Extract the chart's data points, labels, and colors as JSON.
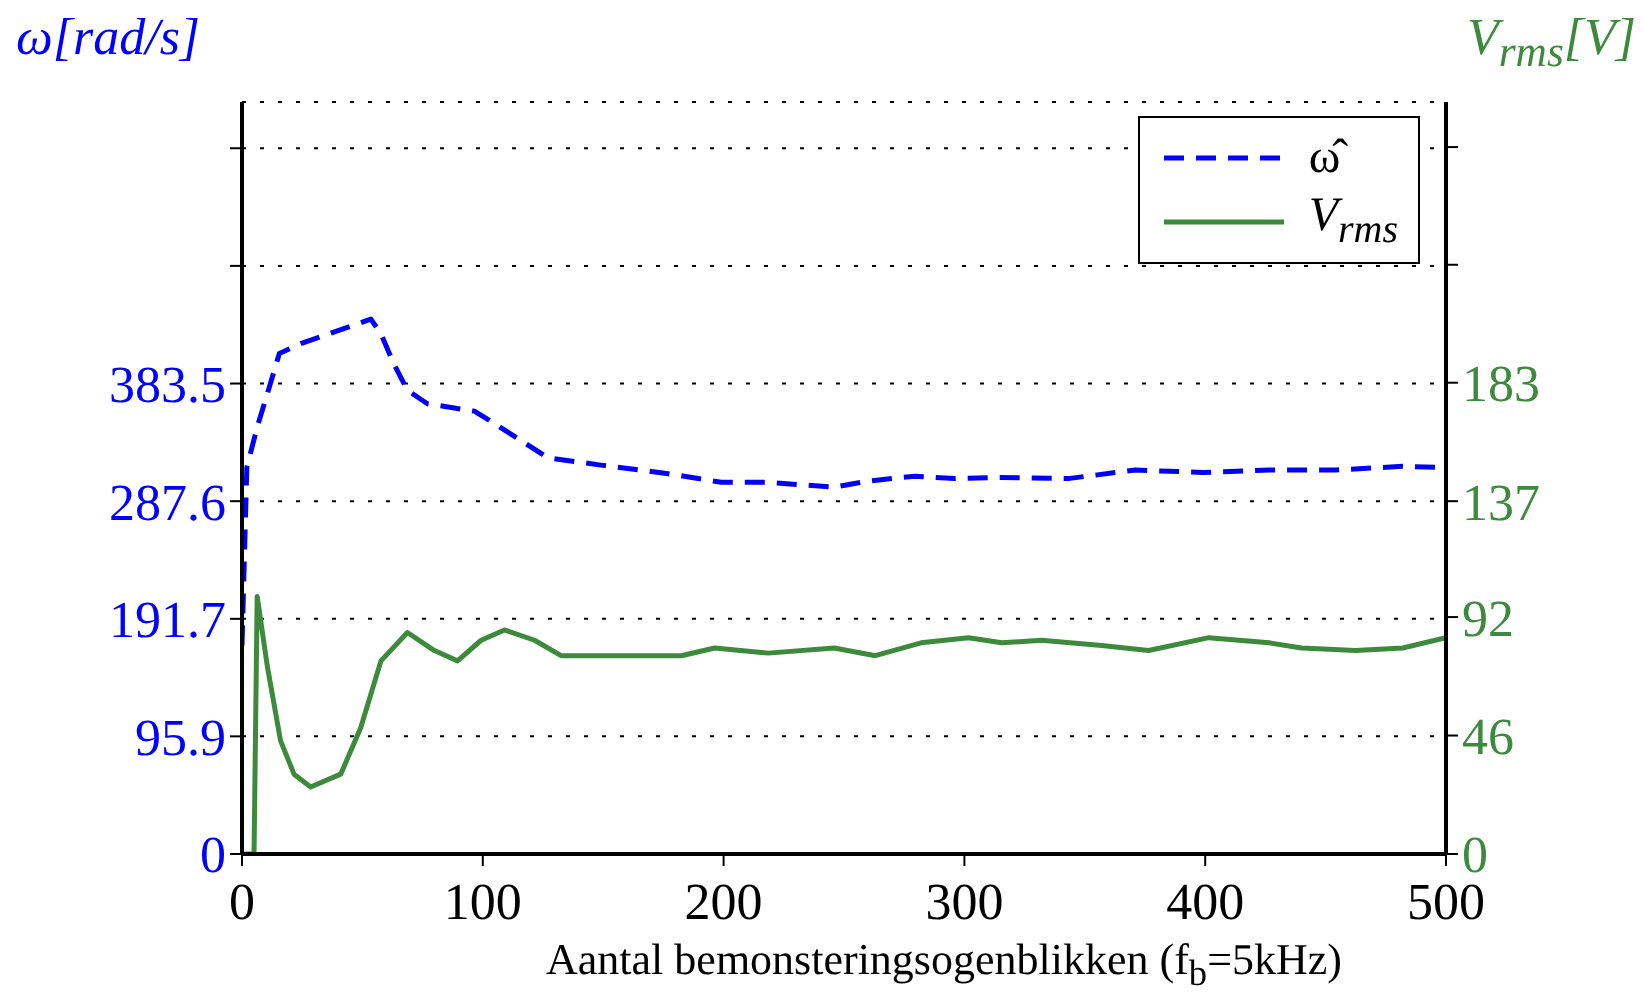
{
  "chart_data": {
    "type": "line",
    "xlabel": "Aantal bemonsteringsogenblikken (f$_{b}$=5kHz)",
    "ylabel": "ω[rad/s]",
    "y2label": "V$_{rms}$[V]",
    "xlim": [
      0,
      500
    ],
    "xticks": [
      0,
      100,
      200,
      300,
      400,
      500
    ],
    "ylim": [
      0,
      613
    ],
    "yticks": [
      0,
      95.9,
      191.7,
      287.6,
      383.5,
      {
        "value": 479.4,
        "label": null
      },
      {
        "value": 575.3,
        "label": null
      }
    ],
    "y2lim": [
      0,
      292
    ],
    "y2ticks": [
      0,
      46,
      92,
      137,
      183,
      {
        "value": 228.8,
        "label": null
      },
      {
        "value": 274.5,
        "label": null
      }
    ],
    "grid": true,
    "legend": "top right",
    "marker": "none",
    "series": [
      {
        "name": "ω̂",
        "color": "#0000ff",
        "line_style": "dashed",
        "axis": "y",
        "x": [
          0,
          2,
          6.3,
          10.5,
          15.5,
          24.4,
          53.5,
          57.7,
          63.2,
          68.7,
          77,
          96.5,
          104.8,
          115.9,
          127,
          149,
          177,
          199,
          218.5,
          246,
          260,
          279.5,
          296,
          315.5,
          343,
          371,
          399,
          426.5,
          454,
          482,
          500
        ],
        "values": [
          170,
          315,
          348,
          375,
          408,
          416,
          436,
          424,
          399,
          378,
          367,
          361,
          351,
          337,
          323,
          317,
          310,
          303,
          303,
          299,
          304,
          308,
          306,
          307,
          306,
          313,
          311,
          313,
          313,
          316,
          315
        ]
      },
      {
        "name": "V$_{rms}$",
        "color": "#3d8a3d",
        "line_style": "solid",
        "axis": "y2",
        "x": [
          0,
          5,
          6.3,
          10.5,
          16,
          21.6,
          28.5,
          41,
          49.3,
          57.7,
          68.7,
          79.9,
          89.5,
          99.3,
          109,
          121.5,
          132.5,
          163,
          182.4,
          196.3,
          218.5,
          246,
          263,
          282,
          301.7,
          315.5,
          332,
          357,
          376.5,
          401.5,
          426.5,
          440,
          462.5,
          482,
          500
        ],
        "values": [
          0,
          0,
          100,
          73,
          44,
          31,
          26,
          31,
          49,
          75,
          86,
          79,
          75,
          83,
          87,
          83,
          77,
          77,
          77,
          80,
          78,
          80,
          77,
          82,
          84,
          82,
          83,
          81,
          79,
          84,
          82,
          80,
          79,
          80,
          84
        ]
      }
    ]
  }
}
